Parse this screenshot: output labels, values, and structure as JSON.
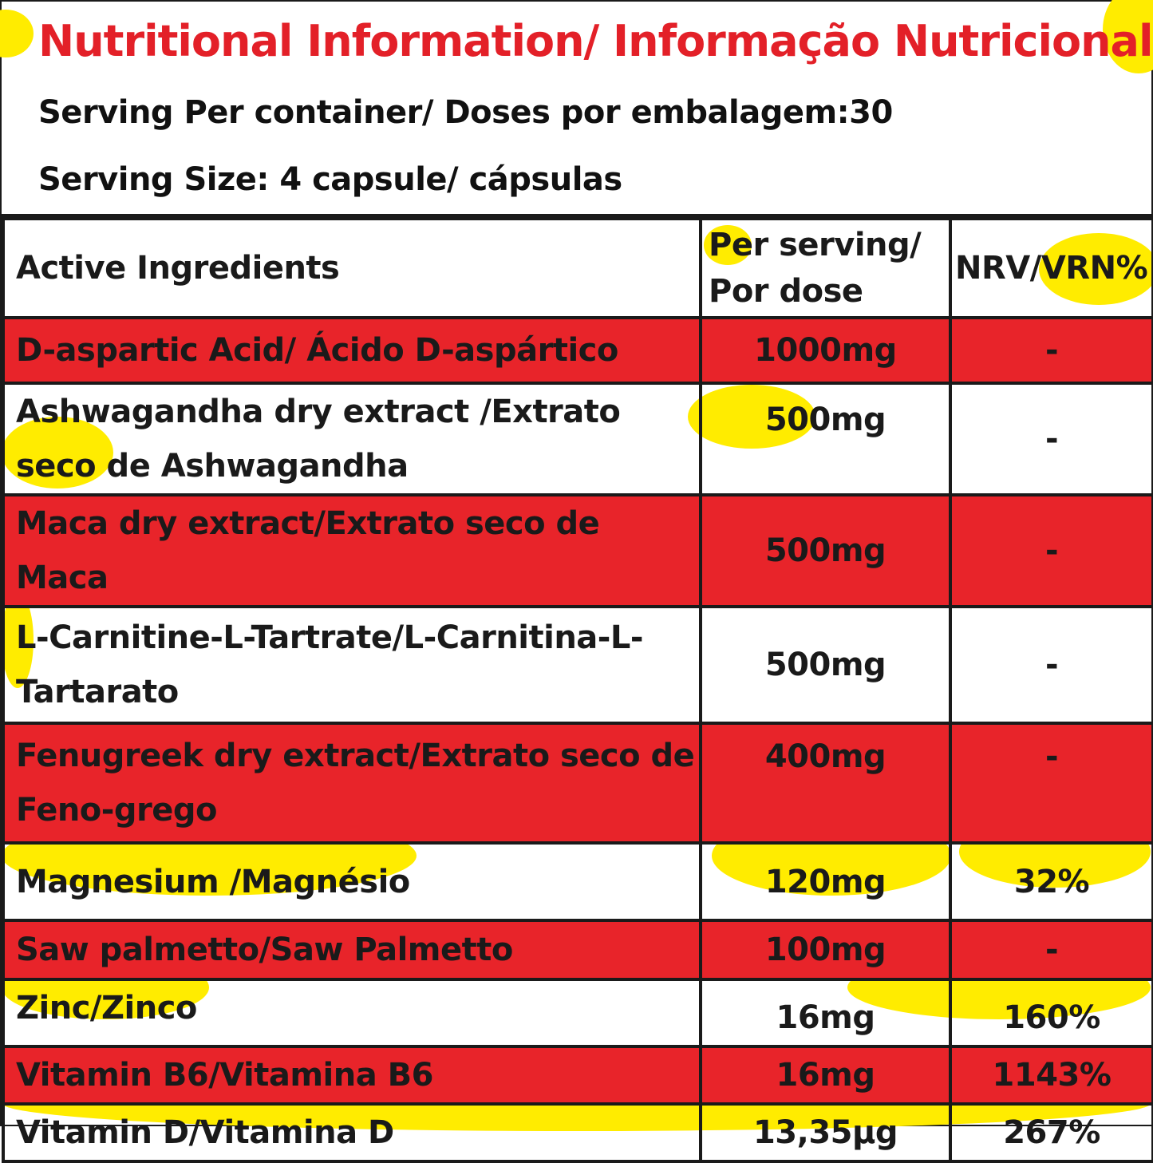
{
  "title": "Nutritional Information/ Informação Nutricional",
  "servings_per_container": "Serving Per container/ Doses por embalagem:30",
  "serving_size": "Serving Size: 4 capsule/ cápsulas",
  "colors": {
    "accent_red": "#e8242a",
    "splash_yellow": "#ffec00",
    "title_red": "#e32028"
  },
  "table": {
    "headers": [
      "Active Ingredients",
      "Per serving/ Por dose",
      "NRV/VRN%"
    ],
    "rows": [
      {
        "ingredient": "D-aspartic Acid/ Ácido D-aspártico",
        "per_serving": "1000mg",
        "nrv": "-",
        "style": "red"
      },
      {
        "ingredient": "Ashwagandha dry extract /Extrato seco de Ashwagandha",
        "per_serving": "500mg",
        "nrv": "-",
        "style": "white"
      },
      {
        "ingredient": "Maca dry extract/Extrato seco de Maca",
        "per_serving": "500mg",
        "nrv": "-",
        "style": "red"
      },
      {
        "ingredient": "L-Carnitine-L-Tartrate/L-Carnitina-L-Tartarato",
        "per_serving": "500mg",
        "nrv": "-",
        "style": "white"
      },
      {
        "ingredient": "Fenugreek dry extract/Extrato seco de Feno-grego",
        "per_serving": "400mg",
        "nrv": "-",
        "style": "red"
      },
      {
        "ingredient": "Magnesium /Magnésio",
        "per_serving": "120mg",
        "nrv": "32%",
        "style": "white"
      },
      {
        "ingredient": "Saw palmetto/Saw Palmetto",
        "per_serving": "100mg",
        "nrv": "-",
        "style": "red"
      },
      {
        "ingredient": "Zinc/Zinco",
        "per_serving": "16mg",
        "nrv": "160%",
        "style": "white"
      },
      {
        "ingredient": "Vitamin B6/Vitamina B6",
        "per_serving": "16mg",
        "nrv": "1143%",
        "style": "red"
      },
      {
        "ingredient": "Vitamin D/Vitamina D",
        "per_serving": "13,35µg",
        "nrv": "267%",
        "style": "white"
      }
    ]
  }
}
